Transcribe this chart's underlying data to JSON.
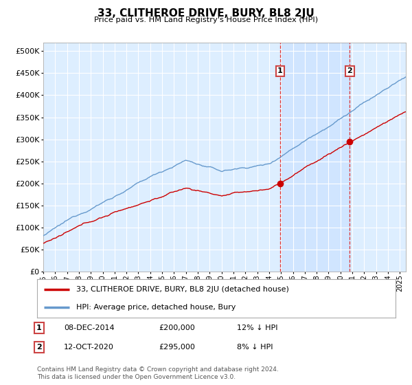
{
  "title": "33, CLITHEROE DRIVE, BURY, BL8 2JU",
  "subtitle": "Price paid vs. HM Land Registry's House Price Index (HPI)",
  "ytick_values": [
    0,
    50000,
    100000,
    150000,
    200000,
    250000,
    300000,
    350000,
    400000,
    450000,
    500000
  ],
  "ylim": [
    0,
    520000
  ],
  "xlim_start": 1995.0,
  "xlim_end": 2025.5,
  "background_color": "#ffffff",
  "plot_bg_color": "#ddeeff",
  "grid_color": "#ccddee",
  "line_color_red": "#cc0000",
  "line_color_blue": "#6699cc",
  "marker1_date_x": 2014.92,
  "marker1_price": 200000,
  "marker2_date_x": 2020.79,
  "marker2_price": 295000,
  "legend_line1": "33, CLITHEROE DRIVE, BURY, BL8 2JU (detached house)",
  "legend_line2": "HPI: Average price, detached house, Bury",
  "table_row1": [
    "1",
    "08-DEC-2014",
    "£200,000",
    "12% ↓ HPI"
  ],
  "table_row2": [
    "2",
    "12-OCT-2020",
    "£295,000",
    "8% ↓ HPI"
  ],
  "footer": "Contains HM Land Registry data © Crown copyright and database right 2024.\nThis data is licensed under the Open Government Licence v3.0.",
  "xtick_years": [
    1995,
    1996,
    1997,
    1998,
    1999,
    2000,
    2001,
    2002,
    2003,
    2004,
    2005,
    2006,
    2007,
    2008,
    2009,
    2010,
    2011,
    2012,
    2013,
    2014,
    2015,
    2016,
    2017,
    2018,
    2019,
    2020,
    2021,
    2022,
    2023,
    2024,
    2025
  ]
}
